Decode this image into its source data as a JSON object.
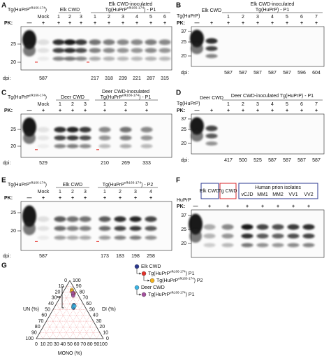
{
  "figure": {
    "panels": [
      {
        "label": "A",
        "mouse": {
          "text": "Tg(HuPrP",
          "superscript": "elk166-174",
          "suffix": ")"
        },
        "groups": [
          {
            "title": "Elk CWD"
          },
          {
            "title": "Elk CWD-inoculated",
            "subtitle": {
              "text": "Tg(HuPrP",
              "superscript": "elk166-174",
              "suffix": ") - P1"
            }
          }
        ],
        "lanes": [
          null,
          "Mock",
          "1",
          "2",
          "3",
          "1",
          "2",
          "3",
          "4",
          "5",
          "6"
        ],
        "pk_label": "PK:",
        "pk": [
          "—",
          "+",
          "+",
          "+",
          "+",
          "+",
          "+",
          "+",
          "+",
          "+",
          "+"
        ],
        "mw": [
          "25",
          "20"
        ],
        "dpi_label": "dpi:",
        "dpi": [
          null,
          "587",
          null,
          null,
          null,
          "217",
          "318",
          "239",
          "221",
          "287",
          "315"
        ]
      },
      {
        "label": "B",
        "mouse": {
          "text": "Tg(HuPrP)"
        },
        "groups": [
          {
            "title": "Elk CWD"
          },
          {
            "title": "Elk CWD-inoculated",
            "subtitle": {
              "text": "Tg(HuPrP) - P1"
            }
          }
        ],
        "lanes": [
          null,
          null,
          "1",
          "2",
          "3",
          "4",
          "5",
          "6",
          "7"
        ],
        "pk_label": "PK:",
        "pk": [
          "—",
          "+",
          "+",
          "+",
          "+",
          "+",
          "+",
          "+",
          "+"
        ],
        "mw": [
          "37",
          "25",
          "20"
        ],
        "dpi_label": "dpi:",
        "dpi": [
          null,
          null,
          "587",
          "587",
          "587",
          "587",
          "587",
          "596",
          "604"
        ]
      },
      {
        "label": "C",
        "mouse": {
          "text": "Tg(HuPrP",
          "superscript": "elk166-174",
          "suffix": ")"
        },
        "groups": [
          {
            "title": "Deer CWD"
          },
          {
            "title": "Deer CWD-inoculated",
            "subtitle": {
              "text": "Tg(HuPrP",
              "superscript": "elk166-174",
              "suffix": ") - P1"
            }
          }
        ],
        "lanes": [
          null,
          "Mock",
          "1",
          "2",
          "3",
          "1",
          "2",
          "3"
        ],
        "pk_label": "PK:",
        "pk": [
          "—",
          "+",
          "+",
          "+",
          "+",
          "+",
          "+",
          "+"
        ],
        "mw": [
          "25",
          "20"
        ],
        "dpi_label": "dpi:",
        "dpi": [
          null,
          "529",
          null,
          null,
          null,
          "210",
          "269",
          "333"
        ]
      },
      {
        "label": "D",
        "mouse": {
          "text": "Tg(HuPrP)"
        },
        "groups": [
          {
            "title": "Deer CWD"
          },
          {
            "title": "Deer CWD-inoculated Tg(HuPrP) - P1"
          }
        ],
        "lanes": [
          null,
          null,
          "1",
          "2",
          "3",
          "4",
          "5",
          "6",
          "7"
        ],
        "pk_label": "PK:",
        "pk": [
          "—",
          "+",
          "+",
          "+",
          "+",
          "+",
          "+",
          "+",
          "+"
        ],
        "mw": [
          "37",
          "25",
          "20"
        ],
        "dpi_label": "dpi:",
        "dpi": [
          null,
          null,
          "417",
          "500",
          "525",
          "587",
          "587",
          "587",
          "587"
        ]
      },
      {
        "label": "E",
        "mouse": {
          "text": "Tg(HuPrP",
          "superscript": "elk166-174",
          "suffix": ")"
        },
        "groups": [
          {
            "title": "Elk CWD"
          },
          {
            "subtitle": {
              "text": "Tg(HuPrP",
              "superscript": "elk166-174",
              "suffix": ") - P2"
            }
          }
        ],
        "lanes": [
          null,
          "Mock",
          "1",
          "2",
          "3",
          "1",
          "2",
          "3",
          "4"
        ],
        "pk_label": "PK:",
        "pk": [
          "—",
          "+",
          "+",
          "+",
          "+",
          "+",
          "+",
          "+",
          "+"
        ],
        "mw": [
          "25",
          "20"
        ],
        "dpi_label": "dpi:",
        "dpi": [
          null,
          "587",
          null,
          null,
          null,
          "173",
          "183",
          "198",
          "258"
        ]
      },
      {
        "label": "F",
        "sample": "HuPrP",
        "groups": [
          {
            "title": "Elk CWD"
          },
          {
            "title": "Tg CWD"
          },
          {
            "title": "Human prion isolates"
          }
        ],
        "lanes": [
          null,
          null,
          null,
          "vCJD",
          "MM1",
          "MM2",
          "VV1",
          "VV2"
        ],
        "pk_label": "PK:",
        "pk": [
          "—",
          "+",
          "+",
          "+",
          "+",
          "+",
          "+",
          "+"
        ],
        "mw": [
          "37",
          "25",
          "20"
        ]
      }
    ],
    "ternary": {
      "label": "G",
      "type": "ternary",
      "grid": true,
      "axes": {
        "un": {
          "label": "UN (%)",
          "ticks": [
            0,
            10,
            20,
            30,
            40,
            50,
            60,
            70,
            80,
            90,
            100
          ]
        },
        "di": {
          "label": "DI (%)",
          "ticks": [
            0,
            10,
            20,
            30,
            40,
            50,
            60,
            70,
            80,
            90,
            100
          ]
        },
        "mono": {
          "label": "MONO (%)",
          "ticks": [
            0,
            10,
            20,
            30,
            40,
            50,
            60,
            70,
            80,
            90,
            100
          ]
        }
      },
      "series": [
        {
          "name": "Elk CWD",
          "color": "#2b3990",
          "un": [
            17,
            15,
            18
          ],
          "di": [
            55,
            58,
            53
          ],
          "mono": [
            28,
            27,
            29
          ]
        },
        {
          "name": {
            "text": "Tg(HuPrP",
            "superscript": "elk166-174",
            "suffix": ") P1"
          },
          "color": "#e4312b",
          "un": [
            6,
            5,
            7
          ],
          "di": [
            80,
            78,
            76
          ],
          "mono": [
            14,
            17,
            17
          ]
        },
        {
          "name": {
            "text": "Tg(HuPrP",
            "superscript": "elk166-174",
            "suffix": ") P2"
          },
          "color": "#f6b31b",
          "un": [
            5,
            6
          ],
          "di": [
            84,
            82
          ],
          "mono": [
            11,
            12
          ]
        },
        {
          "name": "Deer CWD",
          "color": "#3bb4e5",
          "un": [
            16,
            18,
            15
          ],
          "di": [
            57,
            54,
            56
          ],
          "mono": [
            27,
            28,
            29
          ]
        },
        {
          "name": {
            "text": "Tg(HuPrP",
            "superscript": "elk166-174",
            "suffix": ") P1"
          },
          "color": "#a5509f",
          "un": [
            7,
            8,
            6
          ],
          "di": [
            76,
            74,
            79
          ],
          "mono": [
            17,
            18,
            15
          ]
        }
      ],
      "annotation": "**"
    }
  }
}
